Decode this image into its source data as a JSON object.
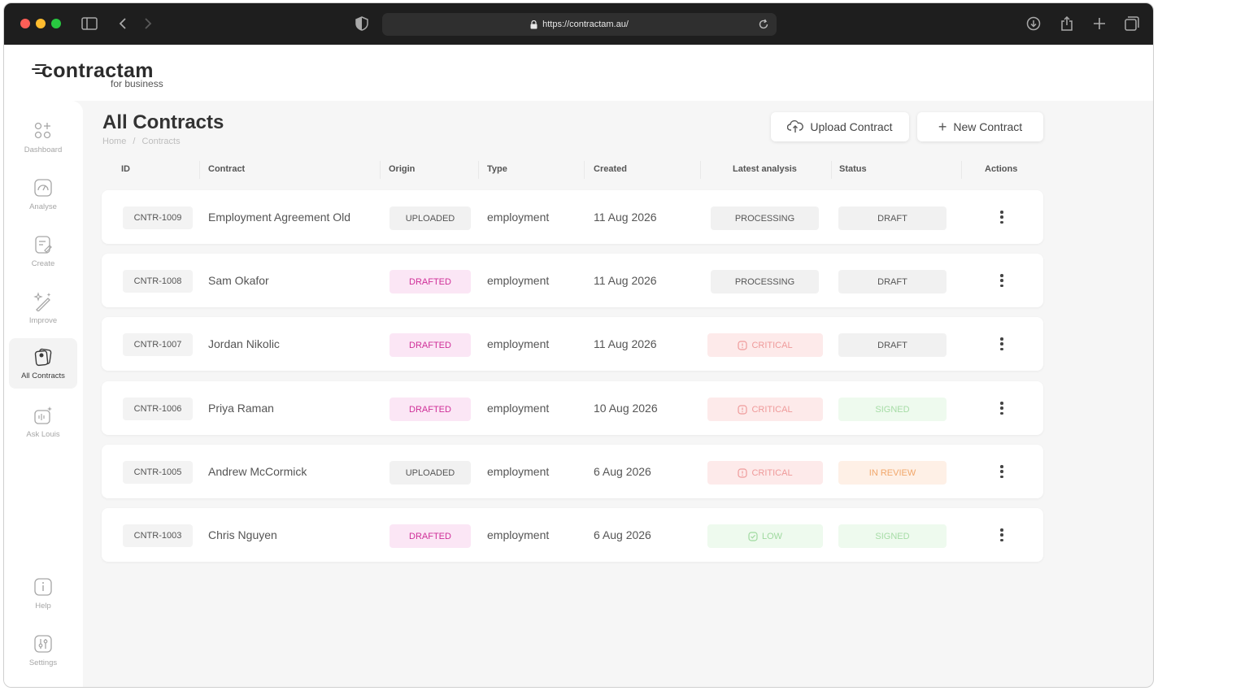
{
  "browser": {
    "url": "https://contractam.au/"
  },
  "brand": {
    "name": "contractam",
    "tagline": "for business"
  },
  "sidebar": {
    "items": [
      {
        "label": "Dashboard"
      },
      {
        "label": "Analyse"
      },
      {
        "label": "Create"
      },
      {
        "label": "Improve"
      },
      {
        "label": "All Contracts"
      },
      {
        "label": "Ask Louis"
      },
      {
        "label": "Help"
      },
      {
        "label": "Settings"
      }
    ]
  },
  "page": {
    "title": "All Contracts",
    "breadcrumb": {
      "home": "Home",
      "separator": "/",
      "current": "Contracts"
    }
  },
  "actions": {
    "upload_label": "Upload Contract",
    "new_label": "New Contract",
    "new_icon": "+"
  },
  "table": {
    "columns": [
      "ID",
      "Contract",
      "Origin",
      "Type",
      "Created",
      "Latest analysis",
      "Status",
      "Actions"
    ],
    "rows": [
      {
        "id": "CNTR-1009",
        "contract": "Employment Agreement Old",
        "origin": "UPLOADED",
        "type": "employment",
        "created": "11 Aug 2026",
        "analysis": "PROCESSING",
        "status": "DRAFT"
      },
      {
        "id": "CNTR-1008",
        "contract": "Sam Okafor",
        "origin": "DRAFTED",
        "type": "employment",
        "created": "11 Aug 2026",
        "analysis": "PROCESSING",
        "status": "DRAFT"
      },
      {
        "id": "CNTR-1007",
        "contract": "Jordan Nikolic",
        "origin": "DRAFTED",
        "type": "employment",
        "created": "11 Aug 2026",
        "analysis": "CRITICAL",
        "status": "DRAFT"
      },
      {
        "id": "CNTR-1006",
        "contract": "Priya Raman",
        "origin": "DRAFTED",
        "type": "employment",
        "created": "10 Aug 2026",
        "analysis": "CRITICAL",
        "status": "SIGNED"
      },
      {
        "id": "CNTR-1005",
        "contract": "Andrew McCormick",
        "origin": "UPLOADED",
        "type": "employment",
        "created": "6 Aug 2026",
        "analysis": "CRITICAL",
        "status": "IN REVIEW"
      },
      {
        "id": "CNTR-1003",
        "contract": "Chris Nguyen",
        "origin": "DRAFTED",
        "type": "employment",
        "created": "6 Aug 2026",
        "analysis": "LOW",
        "status": "SIGNED"
      }
    ]
  },
  "colors": {
    "drafted_bg": "#fbe6f5",
    "drafted_fg": "#cf2f98",
    "uploaded_bg": "#f1f1f1",
    "uploaded_fg": "#555555",
    "critical_bg": "#fdeaea",
    "critical_fg": "#ef9a9a",
    "low_bg": "#eefaee",
    "low_fg": "#9fd99f",
    "signed_bg": "#eefaee",
    "signed_fg": "#a6dca6",
    "review_bg": "#fef0e6",
    "review_fg": "#f1a76b",
    "neutral_bg": "#f1f1f1",
    "neutral_fg": "#555555"
  }
}
